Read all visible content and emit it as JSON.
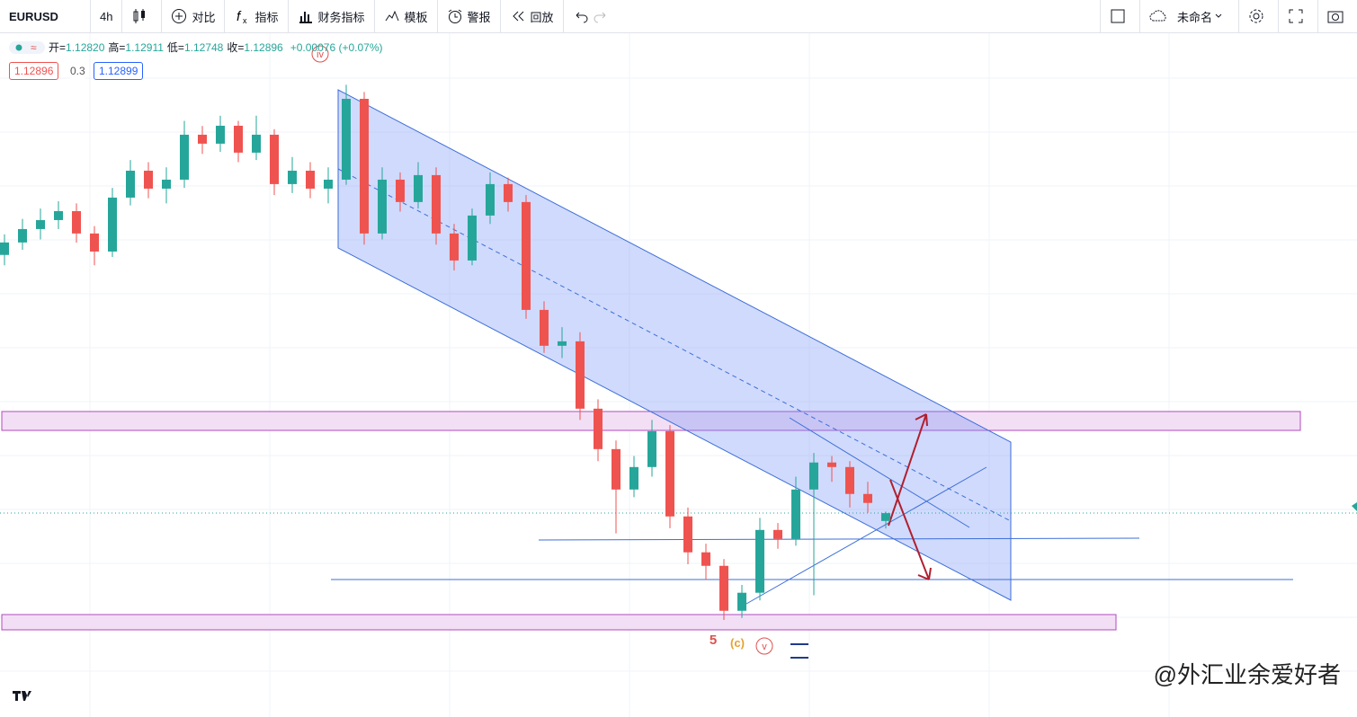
{
  "toolbar": {
    "symbol": "EURUSD",
    "interval": "4h",
    "items": [
      "对比",
      "指标",
      "财务指标",
      "模板",
      "警报",
      "回放"
    ],
    "layout_name": "未命名"
  },
  "legend": {
    "items": [
      {
        "label": "开=",
        "value": "1.12820"
      },
      {
        "label": "高=",
        "value": "1.12911"
      },
      {
        "label": "低=",
        "value": "1.12748"
      },
      {
        "label": "收=",
        "value": "1.12896"
      }
    ],
    "change": "+0.00076 (+0.07%)"
  },
  "price_boxes": {
    "bid": "1.12896",
    "spread": "0.3",
    "ask": "1.12899"
  },
  "wave_labels": [
    "iv",
    "5",
    "(c)",
    "v"
  ],
  "watermark": "@外汇业余爱好者",
  "chart_data": {
    "type": "candlestick",
    "ylim": [
      1.1125,
      1.1755
    ],
    "up_color": "#26a69a",
    "down_color": "#ef5350",
    "candles": [
      [
        1.154,
        1.156,
        1.153,
        1.15521
      ],
      [
        1.15521,
        1.1575,
        1.1545,
        1.15651
      ],
      [
        1.15651,
        1.1585,
        1.1555,
        1.15738
      ],
      [
        1.15738,
        1.1592,
        1.1565,
        1.15825
      ],
      [
        1.15825,
        1.159,
        1.1552,
        1.15608
      ],
      [
        1.15608,
        1.1568,
        1.153,
        1.15433
      ],
      [
        1.15433,
        1.1605,
        1.1538,
        1.15956
      ],
      [
        1.15956,
        1.1632,
        1.1588,
        1.16217
      ],
      [
        1.16217,
        1.163,
        1.1595,
        1.16043
      ],
      [
        1.16043,
        1.1625,
        1.159,
        1.1613
      ],
      [
        1.1613,
        1.167,
        1.1605,
        1.16566
      ],
      [
        1.16566,
        1.1665,
        1.1638,
        1.16479
      ],
      [
        1.16479,
        1.1675,
        1.164,
        1.16653
      ],
      [
        1.16653,
        1.167,
        1.163,
        1.16392
      ],
      [
        1.16392,
        1.1675,
        1.1632,
        1.16566
      ],
      [
        1.16566,
        1.1662,
        1.1598,
        1.16087
      ],
      [
        1.16087,
        1.1635,
        1.16,
        1.16217
      ],
      [
        1.16217,
        1.163,
        1.1595,
        1.16043
      ],
      [
        1.16043,
        1.1625,
        1.159,
        1.1613
      ],
      [
        1.1613,
        1.1705,
        1.1608,
        1.16914
      ],
      [
        1.16914,
        1.1698,
        1.155,
        1.15608
      ],
      [
        1.15608,
        1.1625,
        1.1555,
        1.1613
      ],
      [
        1.1613,
        1.162,
        1.1582,
        1.15913
      ],
      [
        1.15913,
        1.163,
        1.1585,
        1.16174
      ],
      [
        1.16174,
        1.1625,
        1.155,
        1.15608
      ],
      [
        1.15608,
        1.157,
        1.1525,
        1.15346
      ],
      [
        1.15346,
        1.1585,
        1.153,
        1.15782
      ],
      [
        1.15782,
        1.162,
        1.157,
        1.16087
      ],
      [
        1.16087,
        1.1615,
        1.1582,
        1.15913
      ],
      [
        1.15913,
        1.1598,
        1.1478,
        1.14867
      ],
      [
        1.14867,
        1.1495,
        1.1445,
        1.14519
      ],
      [
        1.14519,
        1.147,
        1.144,
        1.14562
      ],
      [
        1.14562,
        1.1465,
        1.138,
        1.13909
      ],
      [
        1.13909,
        1.14,
        1.134,
        1.13517
      ],
      [
        1.13517,
        1.136,
        1.127,
        1.13125
      ],
      [
        1.13125,
        1.1345,
        1.1305,
        1.13343
      ],
      [
        1.13343,
        1.138,
        1.1325,
        1.13691
      ],
      [
        1.13691,
        1.1375,
        1.1275,
        1.12864
      ],
      [
        1.12864,
        1.1295,
        1.124,
        1.12516
      ],
      [
        1.12516,
        1.126,
        1.1225,
        1.12385
      ],
      [
        1.12385,
        1.1245,
        1.1186,
        1.11949
      ],
      [
        1.11949,
        1.122,
        1.1188,
        1.12124
      ],
      [
        1.12124,
        1.1285,
        1.1205,
        1.12733
      ],
      [
        1.12733,
        1.128,
        1.1255,
        1.12646
      ],
      [
        1.12646,
        1.1325,
        1.1258,
        1.13125
      ],
      [
        1.13125,
        1.1348,
        1.121,
        1.13387
      ],
      [
        1.13387,
        1.1345,
        1.132,
        1.13343
      ],
      [
        1.13343,
        1.134,
        1.1295,
        1.13082
      ],
      [
        1.13082,
        1.132,
        1.129,
        1.12995
      ],
      [
        1.1282,
        1.12911,
        1.12748,
        1.12896
      ]
    ]
  }
}
